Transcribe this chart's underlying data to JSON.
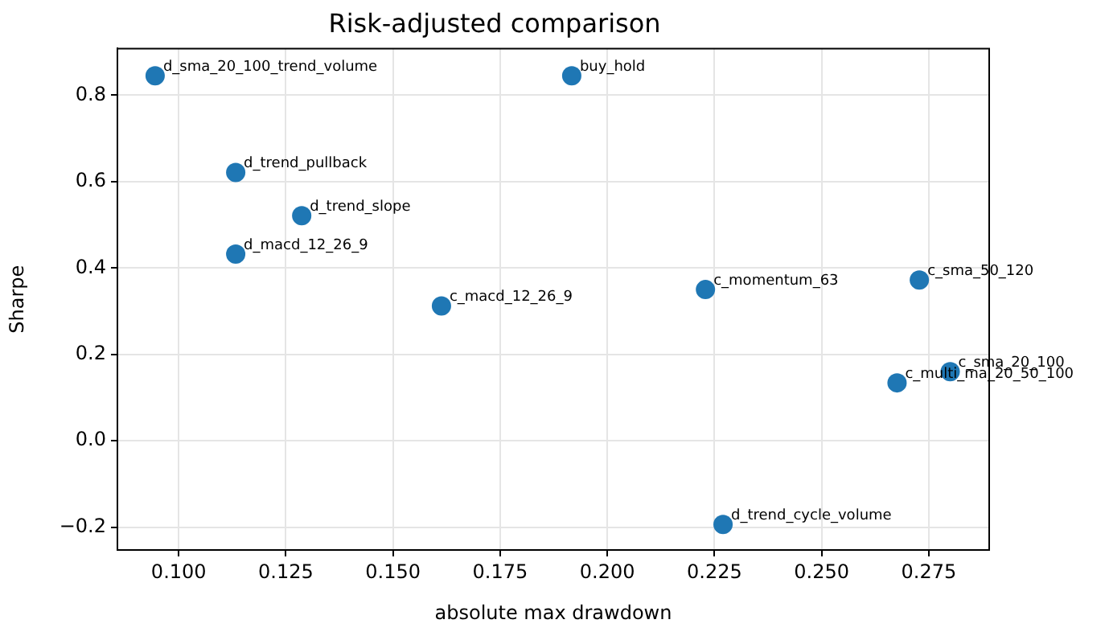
{
  "chart_data": {
    "type": "scatter",
    "title": "Risk-adjusted comparison",
    "xlabel": "absolute max drawdown",
    "ylabel": "Sharpe",
    "x": [
      0.0945,
      0.1917,
      0.1133,
      0.1287,
      0.1133,
      0.1613,
      0.2229,
      0.2728,
      0.28,
      0.2676,
      0.227
    ],
    "series": [
      {
        "color": "#1f77b4",
        "values": [
          0.845,
          0.845,
          0.621,
          0.521,
          0.432,
          0.312,
          0.35,
          0.372,
          0.16,
          0.134,
          -0.194
        ]
      }
    ],
    "xlim": [
      0.0857,
      0.2891
    ],
    "xticks": [
      {
        "value": 0.1,
        "label": "0.100"
      },
      {
        "value": 0.125,
        "label": "0.125"
      },
      {
        "value": 0.15,
        "label": "0.150"
      },
      {
        "value": 0.175,
        "label": "0.175"
      },
      {
        "value": 0.2,
        "label": "0.200"
      },
      {
        "value": 0.225,
        "label": "0.225"
      },
      {
        "value": 0.25,
        "label": "0.250"
      },
      {
        "value": 0.275,
        "label": "0.275"
      }
    ],
    "ylim": [
      -0.253,
      0.908
    ],
    "yticks": [
      {
        "value": -0.2,
        "label": "−0.2"
      },
      {
        "value": 0,
        "label": "0.0"
      },
      {
        "value": 0.2,
        "label": "0.2"
      },
      {
        "value": 0.4,
        "label": "0.4"
      },
      {
        "value": 0.6,
        "label": "0.6"
      },
      {
        "value": 0.8,
        "label": "0.8"
      }
    ],
    "grid": true,
    "legend": false,
    "marker": "circle",
    "annotations": [
      {
        "text": "d_sma_20_100_trend_volume",
        "x": 0.0945,
        "y": 0.845
      },
      {
        "text": "buy_hold",
        "x": 0.1917,
        "y": 0.845
      },
      {
        "text": "d_trend_pullback",
        "x": 0.1133,
        "y": 0.621
      },
      {
        "text": "d_trend_slope",
        "x": 0.1287,
        "y": 0.521
      },
      {
        "text": "d_macd_12_26_9",
        "x": 0.1133,
        "y": 0.432
      },
      {
        "text": "c_macd_12_26_9",
        "x": 0.1613,
        "y": 0.312
      },
      {
        "text": "c_momentum_63",
        "x": 0.2229,
        "y": 0.35
      },
      {
        "text": "c_sma_50_120",
        "x": 0.2728,
        "y": 0.372
      },
      {
        "text": "c_sma_20_100",
        "x": 0.28,
        "y": 0.16
      },
      {
        "text": "c_multi_ma_20_50_100",
        "x": 0.2676,
        "y": 0.134
      },
      {
        "text": "d_trend_cycle_volume",
        "x": 0.227,
        "y": -0.194
      }
    ]
  }
}
